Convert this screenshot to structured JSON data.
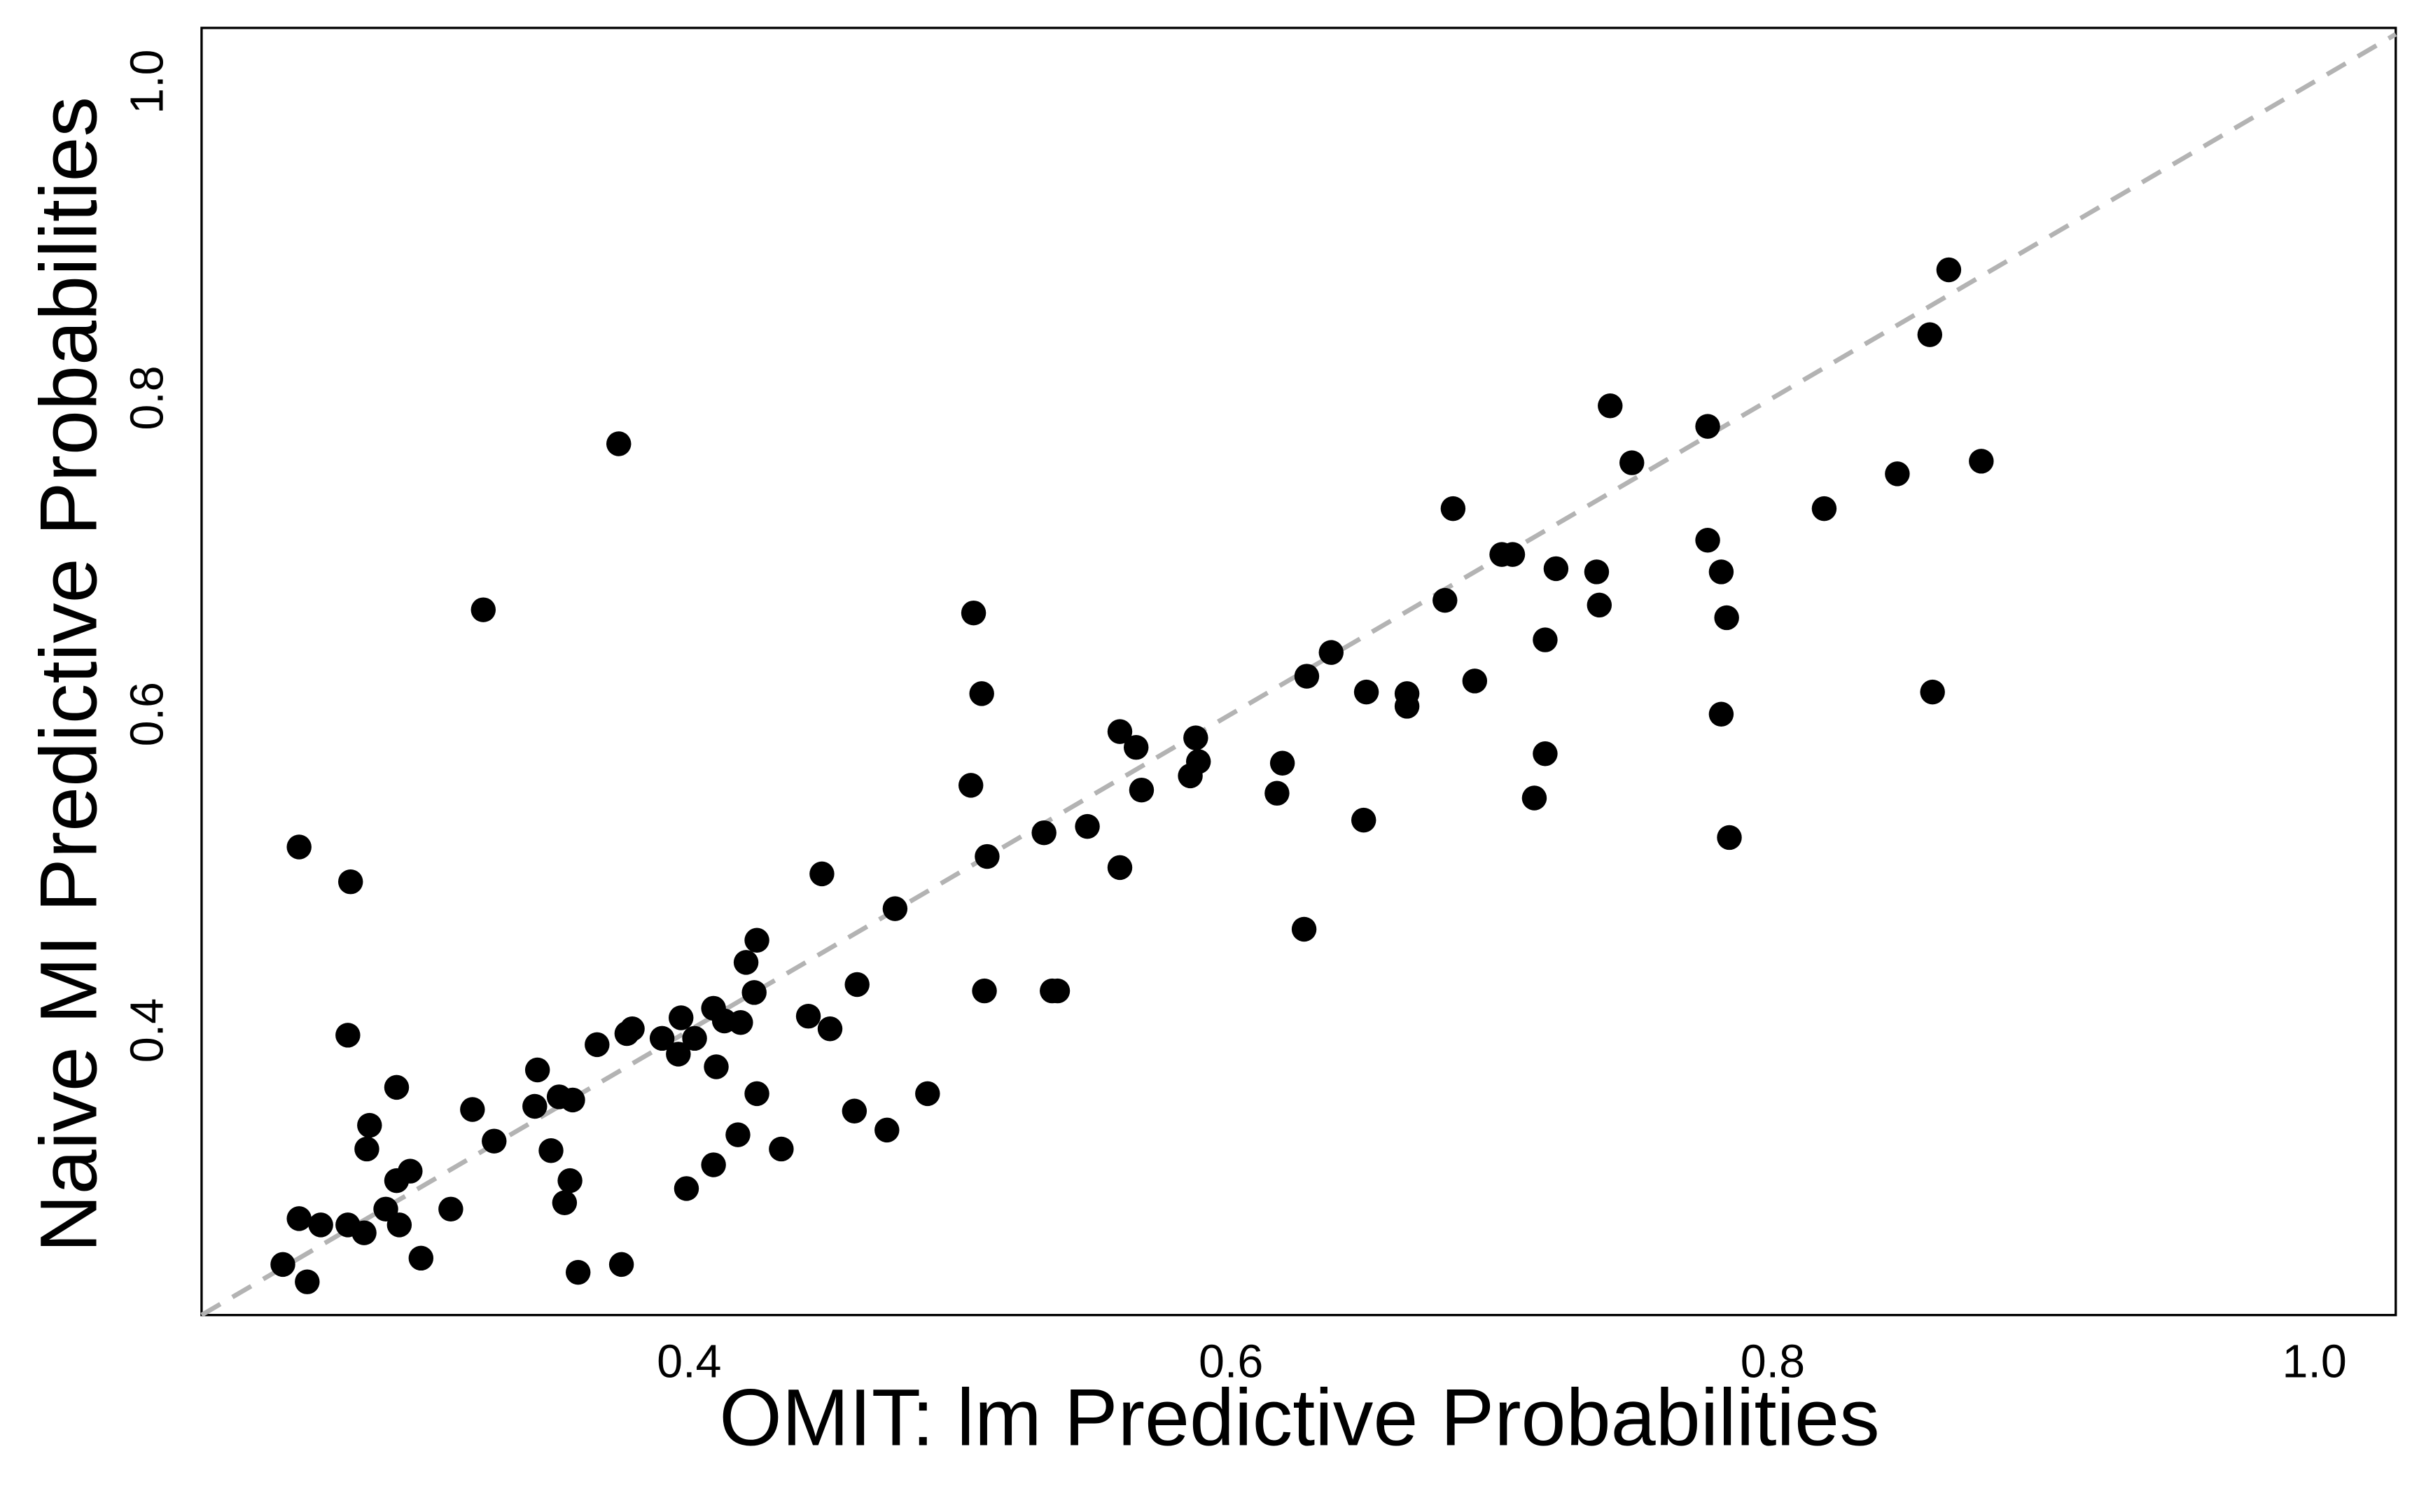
{
  "chart_data": {
    "type": "scatter",
    "x_label": "OMIT: lm Predictive Probabilities",
    "y_label": "Naive MI Predictive Probabilities",
    "color": "#000000",
    "xlim": [
      0.22,
      1.03
    ],
    "ylim": [
      0.22,
      1.034
    ],
    "xticks": [
      0.4,
      0.6,
      0.8,
      {
        "value": 1,
        "label": "1.0"
      }
    ],
    "yticks": [
      0.4,
      0.6,
      0.8,
      {
        "value": 1,
        "label": "1.0"
      }
    ],
    "grid": false,
    "x": [
      0.25,
      0.256,
      0.259,
      0.256,
      0.264,
      0.274,
      0.274,
      0.275,
      0.28,
      0.281,
      0.282,
      0.288,
      0.292,
      0.292,
      0.293,
      0.297,
      0.301,
      0.312,
      0.32,
      0.324,
      0.328,
      0.343,
      0.344,
      0.349,
      0.352,
      0.354,
      0.356,
      0.357,
      0.359,
      0.366,
      0.374,
      0.375,
      0.377,
      0.379,
      0.39,
      0.396,
      0.397,
      0.399,
      0.402,
      0.409,
      0.409,
      0.41,
      0.413,
      0.418,
      0.419,
      0.421,
      0.424,
      0.425,
      0.425,
      0.434,
      0.444,
      0.449,
      0.452,
      0.461,
      0.462,
      0.473,
      0.476,
      0.488,
      0.504,
      0.505,
      0.508,
      0.509,
      0.51,
      0.531,
      0.534,
      0.536,
      0.547,
      0.559,
      0.559,
      0.565,
      0.567,
      0.585,
      0.587,
      0.588,
      0.617,
      0.619,
      0.627,
      0.628,
      0.637,
      0.649,
      0.65,
      0.665,
      0.665,
      0.679,
      0.682,
      0.69,
      0.7,
      0.704,
      0.716,
      0.716,
      0.712,
      0.72,
      0.735,
      0.736,
      0.74,
      0.748,
      0.776,
      0.776,
      0.781,
      0.781,
      0.783,
      0.784,
      0.819,
      0.846,
      0.858,
      0.859,
      0.865,
      0.877
    ],
    "values": [
      0.252,
      0.281,
      0.241,
      0.516,
      0.277,
      0.277,
      0.397,
      0.494,
      0.272,
      0.325,
      0.34,
      0.287,
      0.305,
      0.364,
      0.277,
      0.311,
      0.256,
      0.287,
      0.35,
      0.666,
      0.33,
      0.352,
      0.375,
      0.324,
      0.358,
      0.291,
      0.305,
      0.356,
      0.247,
      0.391,
      0.771,
      0.252,
      0.398,
      0.401,
      0.395,
      0.385,
      0.408,
      0.3,
      0.395,
      0.414,
      0.315,
      0.377,
      0.406,
      0.334,
      0.405,
      0.443,
      0.424,
      0.36,
      0.457,
      0.325,
      0.409,
      0.499,
      0.401,
      0.349,
      0.429,
      0.337,
      0.477,
      0.36,
      0.555,
      0.664,
      0.613,
      0.425,
      0.51,
      0.525,
      0.425,
      0.425,
      0.529,
      0.589,
      0.503,
      0.579,
      0.552,
      0.561,
      0.585,
      0.57,
      0.55,
      0.569,
      0.464,
      0.624,
      0.639,
      0.533,
      0.614,
      0.605,
      0.613,
      0.672,
      0.73,
      0.621,
      0.701,
      0.701,
      0.575,
      0.647,
      0.547,
      0.692,
      0.69,
      0.669,
      0.795,
      0.759,
      0.782,
      0.71,
      0.69,
      0.6,
      0.661,
      0.522,
      0.73,
      0.752,
      0.84,
      0.614,
      0.881,
      0.76
    ]
  }
}
